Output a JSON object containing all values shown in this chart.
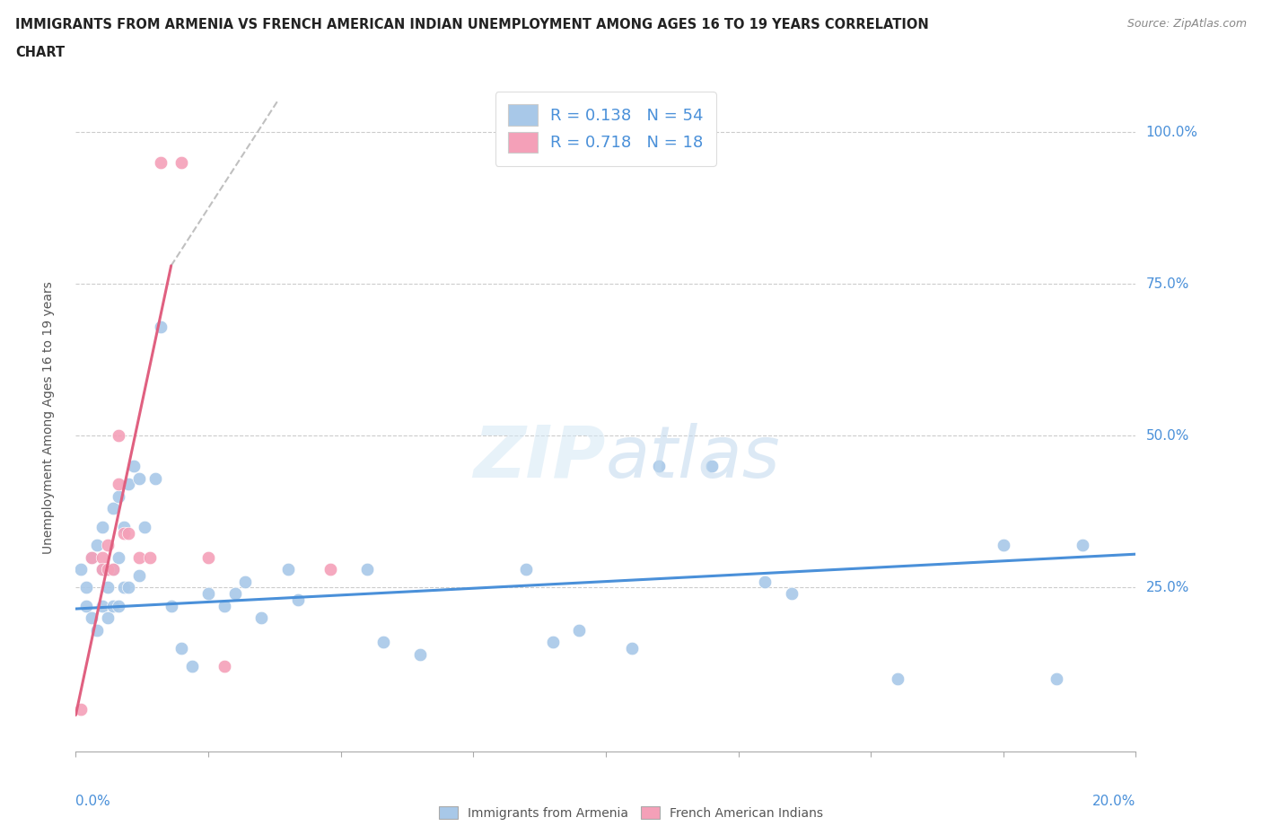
{
  "title_line1": "IMMIGRANTS FROM ARMENIA VS FRENCH AMERICAN INDIAN UNEMPLOYMENT AMONG AGES 16 TO 19 YEARS CORRELATION",
  "title_line2": "CHART",
  "source": "Source: ZipAtlas.com",
  "ylabel": "Unemployment Among Ages 16 to 19 years",
  "xlim": [
    0.0,
    0.2
  ],
  "ylim": [
    -0.02,
    1.08
  ],
  "blue_color": "#a8c8e8",
  "pink_color": "#f4a0b8",
  "blue_line_color": "#4a90d9",
  "pink_line_color": "#e06080",
  "dashed_line_color": "#c0c0c0",
  "legend_text_color": "#4a90d9",
  "r_blue": 0.138,
  "n_blue": 54,
  "r_pink": 0.718,
  "n_pink": 18,
  "blue_scatter_x": [
    0.001,
    0.002,
    0.002,
    0.003,
    0.003,
    0.004,
    0.004,
    0.005,
    0.005,
    0.005,
    0.006,
    0.006,
    0.006,
    0.007,
    0.007,
    0.007,
    0.008,
    0.008,
    0.008,
    0.009,
    0.009,
    0.01,
    0.01,
    0.011,
    0.012,
    0.012,
    0.013,
    0.015,
    0.016,
    0.018,
    0.02,
    0.022,
    0.025,
    0.028,
    0.03,
    0.032,
    0.035,
    0.04,
    0.042,
    0.055,
    0.058,
    0.065,
    0.085,
    0.09,
    0.095,
    0.105,
    0.11,
    0.12,
    0.13,
    0.135,
    0.155,
    0.175,
    0.185,
    0.19
  ],
  "blue_scatter_y": [
    0.28,
    0.22,
    0.25,
    0.2,
    0.3,
    0.18,
    0.32,
    0.28,
    0.22,
    0.35,
    0.25,
    0.2,
    0.28,
    0.38,
    0.28,
    0.22,
    0.4,
    0.3,
    0.22,
    0.35,
    0.25,
    0.42,
    0.25,
    0.45,
    0.43,
    0.27,
    0.35,
    0.43,
    0.68,
    0.22,
    0.15,
    0.12,
    0.24,
    0.22,
    0.24,
    0.26,
    0.2,
    0.28,
    0.23,
    0.28,
    0.16,
    0.14,
    0.28,
    0.16,
    0.18,
    0.15,
    0.45,
    0.45,
    0.26,
    0.24,
    0.1,
    0.32,
    0.1,
    0.32
  ],
  "pink_scatter_x": [
    0.001,
    0.003,
    0.005,
    0.005,
    0.006,
    0.006,
    0.007,
    0.008,
    0.008,
    0.009,
    0.01,
    0.012,
    0.014,
    0.016,
    0.02,
    0.025,
    0.028,
    0.048
  ],
  "pink_scatter_y": [
    0.05,
    0.3,
    0.3,
    0.28,
    0.28,
    0.32,
    0.28,
    0.5,
    0.42,
    0.34,
    0.34,
    0.3,
    0.3,
    0.95,
    0.95,
    0.3,
    0.12,
    0.28
  ],
  "blue_line_x0": 0.0,
  "blue_line_x1": 0.2,
  "blue_line_y0": 0.215,
  "blue_line_y1": 0.305,
  "pink_line_x0": 0.0,
  "pink_line_x1": 0.018,
  "pink_line_y0": 0.04,
  "pink_line_y1": 0.78,
  "dash_line_x0": 0.018,
  "dash_line_x1": 0.038,
  "dash_line_y0": 0.78,
  "dash_line_y1": 1.05
}
